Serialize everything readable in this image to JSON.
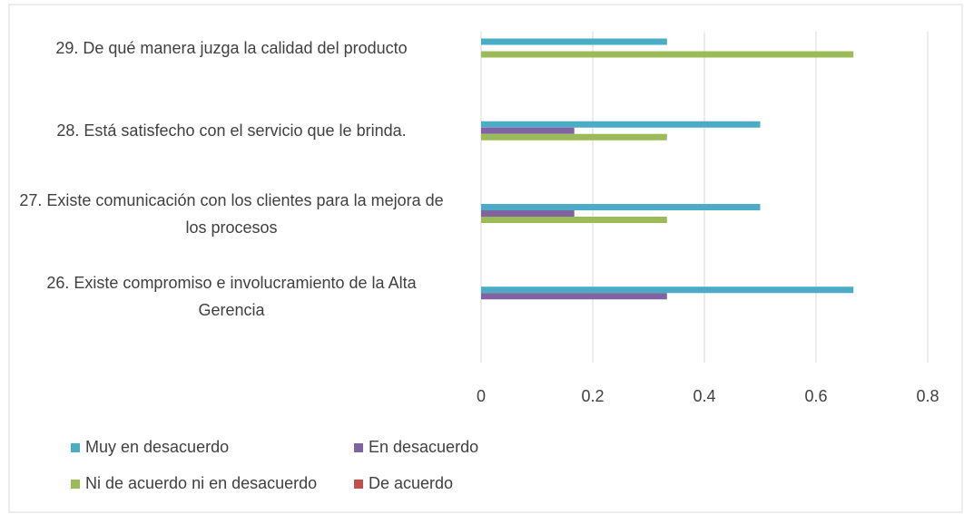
{
  "chart_data": {
    "type": "bar",
    "orientation": "horizontal",
    "categories": [
      "29. De qué manera juzga la calidad del producto",
      "28. Está satisfecho con el servicio que le brinda.",
      "27. Existe comunicación con los clientes para la mejora de los procesos",
      "26. Existe compromiso e involucramiento de la Alta Gerencia"
    ],
    "series": [
      {
        "name": "Muy en desacuerdo",
        "color": "#4bacc6",
        "values": [
          0.333,
          0.5,
          0.5,
          0.667
        ]
      },
      {
        "name": "En desacuerdo",
        "color": "#8064a2",
        "values": [
          0,
          0.167,
          0.167,
          0.333
        ]
      },
      {
        "name": "Ni de acuerdo ni en desacuerdo",
        "color": "#9bbb59",
        "values": [
          0.667,
          0.333,
          0.333,
          0
        ]
      },
      {
        "name": "De acuerdo",
        "color": "#c0504d",
        "values": [
          0,
          0,
          0,
          0
        ]
      }
    ],
    "xlim": [
      0,
      0.8
    ],
    "xticks": [
      0,
      0.2,
      0.4,
      0.6,
      0.8
    ],
    "grid": true,
    "legend": "bottom"
  }
}
